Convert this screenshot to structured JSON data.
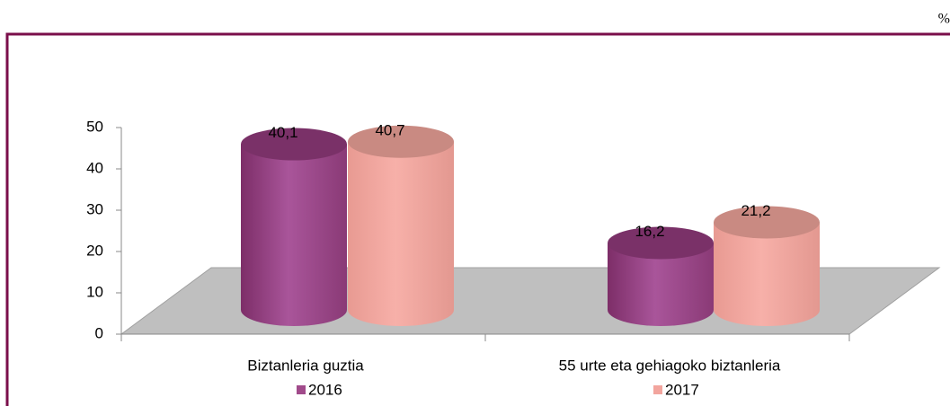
{
  "chart_data": {
    "type": "bar3d",
    "unit": "%",
    "categories": [
      "Biztanleria guztia",
      "55 urte eta gehiagoko biztanleria"
    ],
    "series": [
      {
        "name": "2016",
        "color": "#a14b8b",
        "values": [
          40.1,
          16.2
        ],
        "value_labels": [
          "40,1",
          "16,2"
        ]
      },
      {
        "name": "2017",
        "color": "#f2a59e",
        "values": [
          40.7,
          21.2
        ],
        "value_labels": [
          "40,7",
          "21,2"
        ]
      }
    ],
    "ylim": [
      0,
      50
    ],
    "yticks": [
      0,
      10,
      20,
      30,
      40,
      50
    ],
    "legend": "bottom"
  }
}
